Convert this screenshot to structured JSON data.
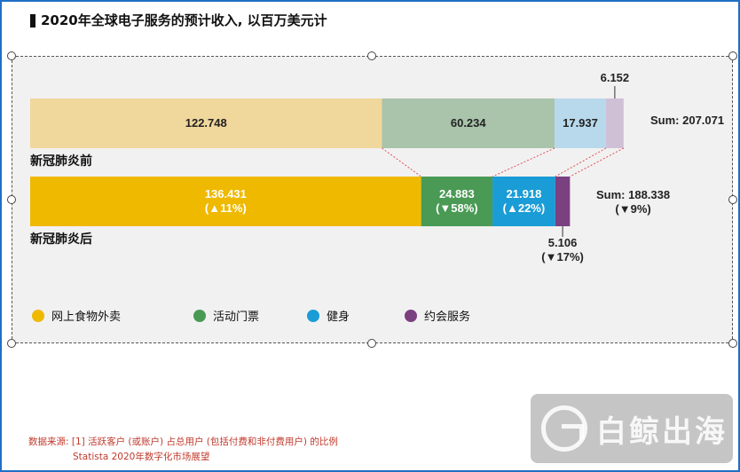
{
  "title": "2020年全球电子服务的预计收入, 以百万美元计",
  "colors": {
    "food": "#efb900",
    "food_light": "#f0d79c",
    "events": "#4a9a55",
    "events_light": "#a9c4ab",
    "fitness": "#1a9cd6",
    "fitness_light": "#b8d9ec",
    "dating": "#7a4080",
    "dating_light": "#d0c0d6",
    "connector": "#e0505a"
  },
  "chart_data": {
    "type": "bar",
    "orientation": "horizontal-stacked",
    "categories": [
      "新冠肺炎前",
      "新冠肺炎后"
    ],
    "series": [
      {
        "name": "网上食物外卖",
        "values": [
          122.748,
          136.431
        ],
        "changes": [
          "",
          "(▲11%)"
        ]
      },
      {
        "name": "活动门票",
        "values": [
          60.234,
          24.883
        ],
        "changes": [
          "",
          "(▼58%)"
        ]
      },
      {
        "name": "健身",
        "values": [
          17.937,
          21.918
        ],
        "changes": [
          "",
          "(▲22%)"
        ]
      },
      {
        "name": "约会服务",
        "values": [
          6.152,
          5.106
        ],
        "changes": [
          "",
          "(▼17%)"
        ]
      }
    ],
    "value_labels": [
      [
        "122.748",
        "60.234",
        "17.937",
        "6.152"
      ],
      [
        "136.431",
        "24.883",
        "21.918",
        "5.106"
      ]
    ],
    "sums": [
      {
        "label": "Sum: 207.071",
        "change": ""
      },
      {
        "label": "Sum: 188.338",
        "change": "(▼9%)"
      }
    ],
    "legend_position": "bottom-left"
  },
  "source": {
    "line1": "数据来源: [1] 活跃客户 (或账户) 占总用户 (包括付费和非付费用户) 的比例",
    "line2": "Statista 2020年数字化市场展望"
  },
  "watermark": "白鲸出海"
}
